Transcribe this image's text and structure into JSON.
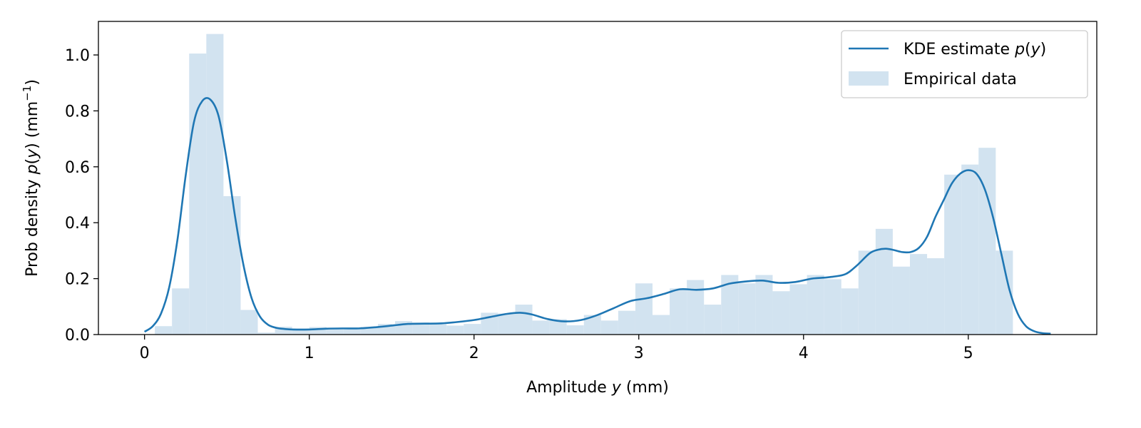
{
  "chart_data": {
    "type": "area",
    "xlabel": {
      "pre": "Amplitude ",
      "var": "y",
      "post": " (mm)"
    },
    "ylabel": {
      "pre": "Prob density ",
      "var": "p",
      "open": "(",
      "var2": "y",
      "close": ") (mm",
      "sup": "−1",
      "end": ")"
    },
    "xlim": [
      -0.28,
      5.78
    ],
    "ylim": [
      0,
      1.12
    ],
    "xticks": [
      0,
      1,
      2,
      3,
      4,
      5
    ],
    "xtick_labels": [
      "0",
      "1",
      "2",
      "3",
      "4",
      "5"
    ],
    "yticks": [
      0.0,
      0.2,
      0.4,
      0.6,
      0.8,
      1.0
    ],
    "ytick_labels": [
      "0.0",
      "0.2",
      "0.4",
      "0.6",
      "0.8",
      "1.0"
    ],
    "grid": false,
    "legend_position": "top-right",
    "legend": {
      "kde": {
        "pre": "KDE estimate ",
        "var": "p",
        "open": "(",
        "var2": "y",
        "close": ")"
      },
      "hist": "Empirical data"
    },
    "colors": {
      "line": "#1f77b4",
      "bars": "#d2e3f0"
    },
    "histogram": {
      "bin_edges": [
        0.0625,
        0.1667,
        0.2708,
        0.375,
        0.4792,
        0.5833,
        0.6875,
        0.7917,
        0.8958,
        1.0,
        1.1042,
        1.2083,
        1.3125,
        1.4167,
        1.5208,
        1.625,
        1.7292,
        1.8333,
        1.9375,
        2.0417,
        2.1458,
        2.25,
        2.3542,
        2.4583,
        2.5625,
        2.6667,
        2.7708,
        2.875,
        2.9792,
        3.0833,
        3.1875,
        3.2917,
        3.3958,
        3.5,
        3.6042,
        3.7083,
        3.8125,
        3.9167,
        4.0208,
        4.125,
        4.2292,
        4.3333,
        4.4375,
        4.5417,
        4.6458,
        4.75,
        4.8542,
        4.9583,
        5.0625,
        5.1667,
        5.2708
      ],
      "values": [
        0.03,
        0.165,
        1.005,
        1.075,
        0.495,
        0.088,
        0.007,
        0.028,
        0.022,
        0.027,
        0.022,
        0.022,
        0.027,
        0.038,
        0.048,
        0.043,
        0.037,
        0.032,
        0.038,
        0.078,
        0.075,
        0.107,
        0.05,
        0.055,
        0.033,
        0.07,
        0.05,
        0.085,
        0.183,
        0.07,
        0.165,
        0.195,
        0.107,
        0.213,
        0.183,
        0.213,
        0.155,
        0.18,
        0.213,
        0.198,
        0.165,
        0.3,
        0.378,
        0.243,
        0.288,
        0.273,
        0.572,
        0.608,
        0.668,
        0.3
      ]
    },
    "kde": {
      "x": [
        0.0,
        0.05,
        0.1,
        0.15,
        0.2,
        0.25,
        0.3,
        0.35,
        0.4,
        0.45,
        0.5,
        0.55,
        0.6,
        0.65,
        0.7,
        0.75,
        0.8,
        0.85,
        0.9,
        1.0,
        1.1,
        1.2,
        1.3,
        1.4,
        1.5,
        1.6,
        1.7,
        1.8,
        1.9,
        2.0,
        2.1,
        2.2,
        2.28,
        2.35,
        2.45,
        2.55,
        2.65,
        2.75,
        2.85,
        2.95,
        3.05,
        3.15,
        3.25,
        3.35,
        3.45,
        3.55,
        3.65,
        3.75,
        3.85,
        3.95,
        4.05,
        4.15,
        4.25,
        4.32,
        4.4,
        4.45,
        4.5,
        4.55,
        4.6,
        4.65,
        4.7,
        4.75,
        4.8,
        4.85,
        4.9,
        4.95,
        5.0,
        5.05,
        5.1,
        5.15,
        5.2,
        5.25,
        5.3,
        5.35,
        5.4,
        5.45,
        5.5
      ],
      "y": [
        0.01,
        0.03,
        0.075,
        0.17,
        0.34,
        0.57,
        0.76,
        0.835,
        0.84,
        0.78,
        0.62,
        0.42,
        0.25,
        0.13,
        0.065,
        0.035,
        0.024,
        0.02,
        0.018,
        0.018,
        0.021,
        0.022,
        0.022,
        0.026,
        0.032,
        0.038,
        0.039,
        0.04,
        0.045,
        0.052,
        0.063,
        0.074,
        0.078,
        0.072,
        0.055,
        0.047,
        0.052,
        0.07,
        0.095,
        0.12,
        0.13,
        0.145,
        0.162,
        0.16,
        0.165,
        0.182,
        0.19,
        0.193,
        0.185,
        0.188,
        0.2,
        0.205,
        0.215,
        0.245,
        0.29,
        0.303,
        0.307,
        0.302,
        0.295,
        0.295,
        0.31,
        0.35,
        0.42,
        0.48,
        0.54,
        0.575,
        0.588,
        0.575,
        0.52,
        0.42,
        0.29,
        0.16,
        0.075,
        0.03,
        0.012,
        0.005,
        0.003
      ]
    }
  }
}
